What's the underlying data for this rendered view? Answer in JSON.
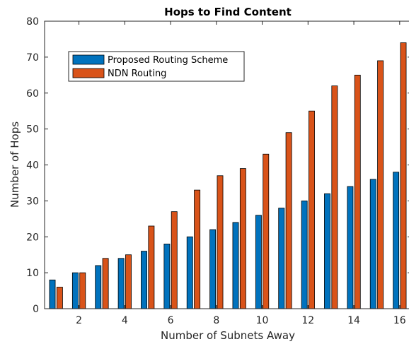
{
  "chart_data": {
    "type": "bar",
    "title": "Hops to Find Content",
    "xlabel": "Number of Subnets Away",
    "ylabel": "Number of Hops",
    "categories": [
      1,
      2,
      3,
      4,
      5,
      6,
      7,
      8,
      9,
      10,
      11,
      12,
      13,
      14,
      15,
      16
    ],
    "x_ticks": [
      2,
      4,
      6,
      8,
      10,
      12,
      14,
      16
    ],
    "y_ticks": [
      0,
      10,
      20,
      30,
      40,
      50,
      60,
      70,
      80
    ],
    "xlim": [
      0.5,
      16.5
    ],
    "ylim": [
      0,
      80
    ],
    "grid": false,
    "legend_position": "top-left",
    "series": [
      {
        "name": "Proposed Routing Scheme",
        "color": "#0072BD",
        "values": [
          8,
          10,
          12,
          14,
          16,
          18,
          20,
          22,
          24,
          26,
          28,
          30,
          32,
          34,
          36,
          38
        ]
      },
      {
        "name": "NDN Routing",
        "color": "#D95319",
        "values": [
          6,
          10,
          14,
          15,
          23,
          27,
          33,
          37,
          39,
          43,
          49,
          55,
          62,
          65,
          69,
          74
        ]
      }
    ]
  }
}
